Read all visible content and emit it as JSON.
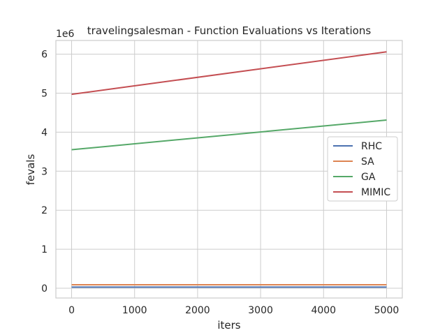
{
  "chart_data": {
    "type": "line",
    "title": "travelingsalesman - Function Evaluations vs Iterations",
    "xlabel": "iters",
    "ylabel": "fevals",
    "y_offset_label": "1e6",
    "xlim": [
      -250,
      5250
    ],
    "ylim": [
      -0.25,
      6.35
    ],
    "y_unit_multiplier": 1000000,
    "xticks": [
      0,
      1000,
      2000,
      3000,
      4000,
      5000
    ],
    "yticks": [
      0,
      1,
      2,
      3,
      4,
      5,
      6
    ],
    "grid": true,
    "legend_position": "center-right",
    "x": [
      0,
      5000
    ],
    "series": [
      {
        "name": "RHC",
        "color": "#4c72b0",
        "values": [
          0.03,
          0.03
        ]
      },
      {
        "name": "SA",
        "color": "#dd8452",
        "values": [
          0.09,
          0.09
        ]
      },
      {
        "name": "GA",
        "color": "#55a868",
        "values": [
          3.55,
          4.31
        ]
      },
      {
        "name": "MIMIC",
        "color": "#c44e52",
        "values": [
          4.97,
          6.06
        ]
      }
    ]
  }
}
